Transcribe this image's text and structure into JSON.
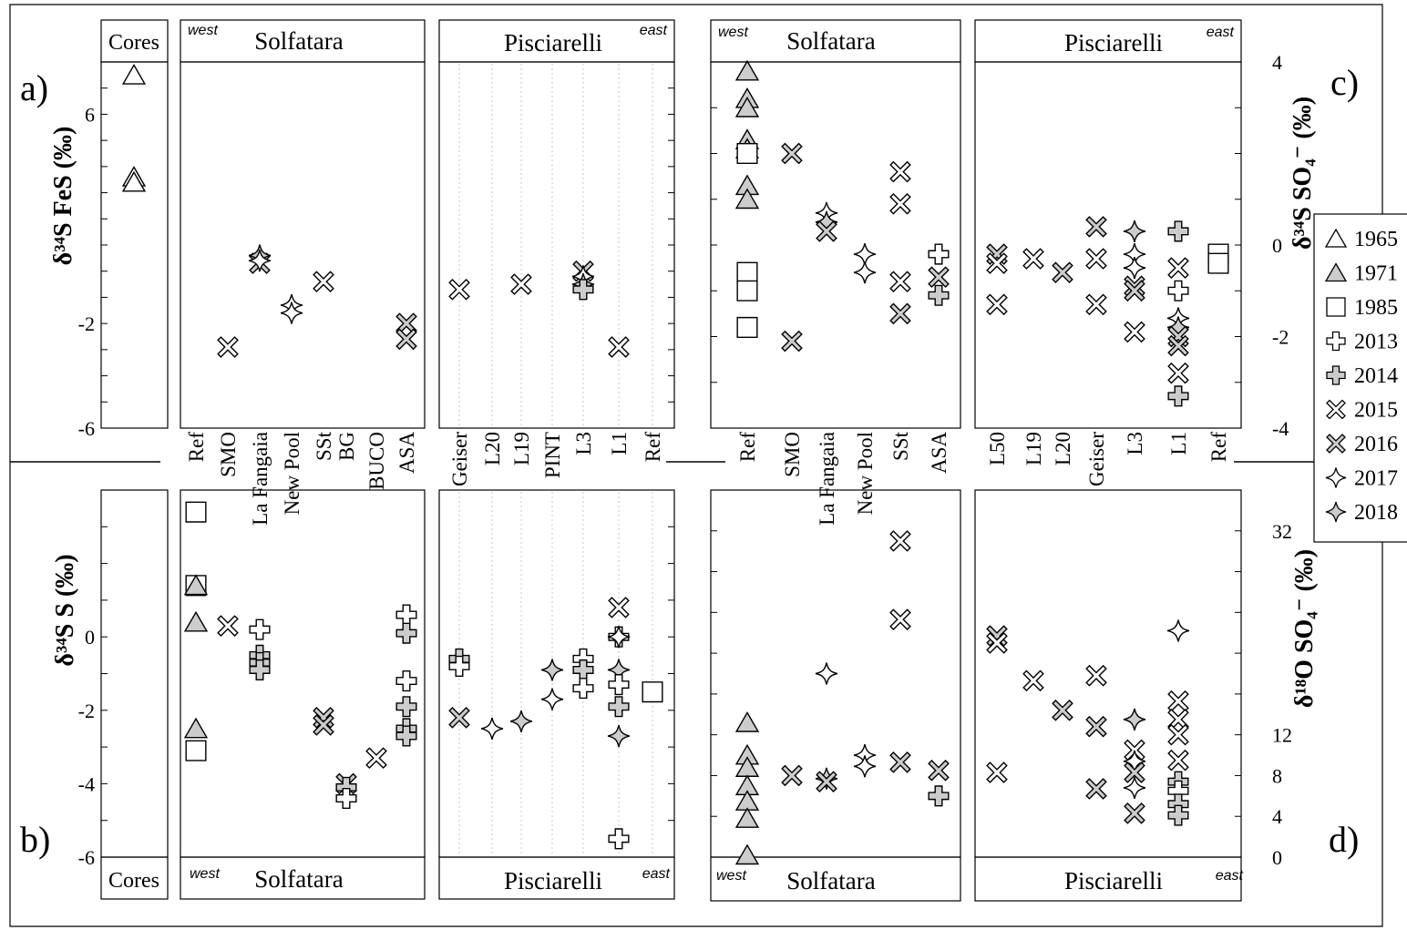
{
  "letters": {
    "a": "a)",
    "b": "b)",
    "c": "c)",
    "d": "d)"
  },
  "sections": {
    "cores": "Cores",
    "solfatara": "Solfatara",
    "pisciarelli": "Pisciarelli",
    "west": "west",
    "east": "east"
  },
  "ylabels": {
    "a": "δ³⁴S FeS (‰)",
    "b": "δ³⁴S S (‰)",
    "c": "δ³⁴S SO₄⁻ (‰)",
    "d": "δ¹⁸O SO₄⁻ (‰)"
  },
  "sites": {
    "left_solfatara": [
      "Ref",
      "SMO",
      "La Fangaia",
      "New Pool",
      "SSt",
      "BG",
      "BUCO",
      "ASA"
    ],
    "left_pisciarelli": [
      "Geiser",
      "L20",
      "L19",
      "PINT",
      "L3",
      "L1",
      "Ref"
    ],
    "right_solfatara": [
      "Ref",
      "SMO",
      "La Fangaia",
      "New Pool",
      "SSt",
      "ASA"
    ],
    "right_pisciarelli": [
      "L50",
      "L19",
      "L20",
      "Geiser",
      "L3",
      "L1",
      "Ref"
    ]
  },
  "legend": [
    {
      "label": "1965",
      "symbol": "triangle",
      "fill": "#ffffff"
    },
    {
      "label": "1971",
      "symbol": "triangle",
      "fill": "#cccccc"
    },
    {
      "label": "1985",
      "symbol": "square",
      "fill": "#ffffff"
    },
    {
      "label": "2013",
      "symbol": "plus",
      "fill": "#ffffff"
    },
    {
      "label": "2014",
      "symbol": "plus",
      "fill": "#cccccc"
    },
    {
      "label": "2015",
      "symbol": "cross",
      "fill": "#ffffff"
    },
    {
      "label": "2016",
      "symbol": "cross",
      "fill": "#cccccc"
    },
    {
      "label": "2017",
      "symbol": "star",
      "fill": "#ffffff"
    },
    {
      "label": "2018",
      "symbol": "star",
      "fill": "#cccccc"
    }
  ],
  "chart_data": [
    {
      "id": "a",
      "type": "scatter",
      "ylim": [
        -6,
        8
      ],
      "yticks": [
        {
          "v": -6,
          "label": "-6"
        },
        {
          "v": -2,
          "label": "-2"
        },
        {
          "v": 6,
          "label": "6"
        }
      ],
      "points": [
        {
          "site": "Cores",
          "y": 7.5,
          "year": "1965"
        },
        {
          "site": "Cores",
          "y": 3.6,
          "year": "1965"
        },
        {
          "site": "Cores",
          "y": 3.4,
          "year": "1965"
        },
        {
          "site": "SMO",
          "y": -2.9,
          "year": "2015"
        },
        {
          "site": "La Fangaia",
          "y": 0.3,
          "year": "2016"
        },
        {
          "site": "La Fangaia",
          "y": 0.6,
          "year": "2018"
        },
        {
          "site": "La Fangaia",
          "y": 0.4,
          "year": "2017"
        },
        {
          "site": "New Pool",
          "y": -1.3,
          "year": "2017"
        },
        {
          "site": "New Pool",
          "y": -1.6,
          "year": "2017"
        },
        {
          "site": "SSt",
          "y": -0.4,
          "year": "2015"
        },
        {
          "site": "ASA",
          "y": -2.0,
          "year": "2016"
        },
        {
          "site": "ASA",
          "y": -2.6,
          "year": "2016"
        },
        {
          "site": "Geiser",
          "y": -0.7,
          "year": "2015"
        },
        {
          "site": "L19",
          "y": -0.5,
          "year": "2015"
        },
        {
          "site": "L3",
          "y": 0.0,
          "year": "2016"
        },
        {
          "site": "L3",
          "y": -0.2,
          "year": "2017"
        },
        {
          "site": "L3",
          "y": -0.5,
          "year": "2018"
        },
        {
          "site": "L3",
          "y": -0.7,
          "year": "2014"
        },
        {
          "site": "L1",
          "y": -2.9,
          "year": "2015"
        }
      ]
    },
    {
      "id": "b",
      "type": "scatter",
      "ylim": [
        -6,
        4
      ],
      "yticks": [
        {
          "v": -6,
          "label": "-6"
        },
        {
          "v": -4,
          "label": "-4"
        },
        {
          "v": -2,
          "label": "-2"
        },
        {
          "v": 0,
          "label": "0"
        }
      ],
      "points": [
        {
          "site": "Ref",
          "y": 3.4,
          "year": "1985"
        },
        {
          "site": "Ref",
          "y": 1.4,
          "year": "1985"
        },
        {
          "site": "Ref",
          "y": 1.4,
          "year": "1971"
        },
        {
          "site": "Ref",
          "y": 0.4,
          "year": "1971"
        },
        {
          "site": "Ref",
          "y": -2.5,
          "year": "1971"
        },
        {
          "site": "Ref",
          "y": -3.1,
          "year": "1985"
        },
        {
          "site": "SMO",
          "y": 0.3,
          "year": "2015"
        },
        {
          "site": "La Fangaia",
          "y": 0.2,
          "year": "2013"
        },
        {
          "site": "La Fangaia",
          "y": -0.5,
          "year": "2014"
        },
        {
          "site": "La Fangaia",
          "y": -0.7,
          "year": "2014"
        },
        {
          "site": "La Fangaia",
          "y": -0.9,
          "year": "2014"
        },
        {
          "site": "SSt",
          "y": -2.2,
          "year": "2016"
        },
        {
          "site": "SSt",
          "y": -2.4,
          "year": "2016"
        },
        {
          "site": "BG",
          "y": -4.0,
          "year": "2016"
        },
        {
          "site": "BG",
          "y": -4.1,
          "year": "2014"
        },
        {
          "site": "BG",
          "y": -4.4,
          "year": "2013"
        },
        {
          "site": "BUCO",
          "y": -3.3,
          "year": "2015"
        },
        {
          "site": "ASA",
          "y": 0.6,
          "year": "2013"
        },
        {
          "site": "ASA",
          "y": 0.1,
          "year": "2014"
        },
        {
          "site": "ASA",
          "y": -1.2,
          "year": "2013"
        },
        {
          "site": "ASA",
          "y": -1.9,
          "year": "2014"
        },
        {
          "site": "ASA",
          "y": -2.5,
          "year": "2014"
        },
        {
          "site": "ASA",
          "y": -2.7,
          "year": "2014"
        },
        {
          "site": "Geiser",
          "y": -0.6,
          "year": "2014"
        },
        {
          "site": "Geiser",
          "y": -0.8,
          "year": "2013"
        },
        {
          "site": "Geiser",
          "y": -2.2,
          "year": "2016"
        },
        {
          "site": "L20",
          "y": -2.5,
          "year": "2017"
        },
        {
          "site": "L19",
          "y": -2.3,
          "year": "2018"
        },
        {
          "site": "PINT",
          "y": -0.9,
          "year": "2018"
        },
        {
          "site": "PINT",
          "y": -1.7,
          "year": "2017"
        },
        {
          "site": "L3",
          "y": -0.6,
          "year": "2013"
        },
        {
          "site": "L3",
          "y": -0.9,
          "year": "2014"
        },
        {
          "site": "L3",
          "y": -1.4,
          "year": "2013"
        },
        {
          "site": "L1",
          "y": 0.8,
          "year": "2015"
        },
        {
          "site": "L1",
          "y": 0.0,
          "year": "2013"
        },
        {
          "site": "L1",
          "y": 0.0,
          "year": "2017"
        },
        {
          "site": "L1",
          "y": -0.9,
          "year": "2018"
        },
        {
          "site": "L1",
          "y": -1.3,
          "year": "2013"
        },
        {
          "site": "L1",
          "y": -1.9,
          "year": "2014"
        },
        {
          "site": "L1",
          "y": -2.7,
          "year": "2018"
        },
        {
          "site": "L1",
          "y": -5.5,
          "year": "2013"
        },
        {
          "site": "Ref",
          "y": -1.5,
          "year": "1985",
          "section": "pisciarelli"
        }
      ]
    },
    {
      "id": "c",
      "type": "scatter",
      "ylim": [
        -4,
        4
      ],
      "yticks": [
        {
          "v": -4,
          "label": "-4"
        },
        {
          "v": -2,
          "label": "-2"
        },
        {
          "v": 0,
          "label": "0"
        },
        {
          "v": 4,
          "label": "4"
        }
      ],
      "points": [
        {
          "site": "Ref",
          "y": 3.8,
          "year": "1971"
        },
        {
          "site": "Ref",
          "y": 3.2,
          "year": "1971"
        },
        {
          "site": "Ref",
          "y": 3.0,
          "year": "1971"
        },
        {
          "site": "Ref",
          "y": 2.3,
          "year": "1971"
        },
        {
          "site": "Ref",
          "y": 2.1,
          "year": "1971"
        },
        {
          "site": "Ref",
          "y": 2.0,
          "year": "1985"
        },
        {
          "site": "Ref",
          "y": 1.3,
          "year": "1971"
        },
        {
          "site": "Ref",
          "y": 1.0,
          "year": "1971"
        },
        {
          "site": "Ref",
          "y": -0.6,
          "year": "1985"
        },
        {
          "site": "Ref",
          "y": -1.0,
          "year": "1985"
        },
        {
          "site": "Ref",
          "y": -1.8,
          "year": "1985"
        },
        {
          "site": "SMO",
          "y": 2.0,
          "year": "2016"
        },
        {
          "site": "SMO",
          "y": -2.1,
          "year": "2016"
        },
        {
          "site": "La Fangaia",
          "y": 0.7,
          "year": "2017"
        },
        {
          "site": "La Fangaia",
          "y": 0.5,
          "year": "2018"
        },
        {
          "site": "La Fangaia",
          "y": 0.3,
          "year": "2016"
        },
        {
          "site": "New Pool",
          "y": -0.2,
          "year": "2017"
        },
        {
          "site": "New Pool",
          "y": -0.6,
          "year": "2017"
        },
        {
          "site": "SSt",
          "y": 1.6,
          "year": "2015"
        },
        {
          "site": "SSt",
          "y": 0.9,
          "year": "2015"
        },
        {
          "site": "SSt",
          "y": -0.8,
          "year": "2015"
        },
        {
          "site": "SSt",
          "y": -1.5,
          "year": "2016"
        },
        {
          "site": "ASA",
          "y": -0.2,
          "year": "2013"
        },
        {
          "site": "ASA",
          "y": -0.7,
          "year": "2016"
        },
        {
          "site": "ASA",
          "y": -1.1,
          "year": "2014"
        },
        {
          "site": "L50",
          "y": -0.2,
          "year": "2016"
        },
        {
          "site": "L50",
          "y": -0.4,
          "year": "2015"
        },
        {
          "site": "L50",
          "y": -1.3,
          "year": "2015"
        },
        {
          "site": "L19",
          "y": -0.3,
          "year": "2015"
        },
        {
          "site": "L20",
          "y": -0.6,
          "year": "2016"
        },
        {
          "site": "Geiser",
          "y": 0.4,
          "year": "2016"
        },
        {
          "site": "Geiser",
          "y": -0.3,
          "year": "2015"
        },
        {
          "site": "Geiser",
          "y": -1.3,
          "year": "2015"
        },
        {
          "site": "L3",
          "y": 0.3,
          "year": "2018"
        },
        {
          "site": "L3",
          "y": -0.2,
          "year": "2017"
        },
        {
          "site": "L3",
          "y": -0.5,
          "year": "2017"
        },
        {
          "site": "L3",
          "y": -0.9,
          "year": "2016"
        },
        {
          "site": "L3",
          "y": -1.0,
          "year": "2016"
        },
        {
          "site": "L3",
          "y": -1.9,
          "year": "2015"
        },
        {
          "site": "L1",
          "y": 0.3,
          "year": "2014"
        },
        {
          "site": "L1",
          "y": -0.5,
          "year": "2015"
        },
        {
          "site": "L1",
          "y": -1.0,
          "year": "2013"
        },
        {
          "site": "L1",
          "y": -1.6,
          "year": "2017"
        },
        {
          "site": "L1",
          "y": -1.8,
          "year": "2018"
        },
        {
          "site": "L1",
          "y": -2.0,
          "year": "2016"
        },
        {
          "site": "L1",
          "y": -2.2,
          "year": "2016"
        },
        {
          "site": "L1",
          "y": -2.8,
          "year": "2015"
        },
        {
          "site": "L1",
          "y": -3.3,
          "year": "2014"
        },
        {
          "site": "Ref",
          "y": -0.2,
          "year": "1985",
          "section": "pisciarelli"
        },
        {
          "site": "Ref",
          "y": -0.4,
          "year": "1985",
          "section": "pisciarelli"
        }
      ]
    },
    {
      "id": "d",
      "type": "scatter",
      "ylim": [
        0,
        36
      ],
      "yticks": [
        {
          "v": 0,
          "label": "0"
        },
        {
          "v": 4,
          "label": "4"
        },
        {
          "v": 8,
          "label": "8"
        },
        {
          "v": 12,
          "label": "12"
        },
        {
          "v": 32,
          "label": "32"
        }
      ],
      "points": [
        {
          "site": "Ref",
          "y": 13.2,
          "year": "1971"
        },
        {
          "site": "Ref",
          "y": 10.0,
          "year": "1971"
        },
        {
          "site": "Ref",
          "y": 8.8,
          "year": "1971"
        },
        {
          "site": "Ref",
          "y": 7.0,
          "year": "1971"
        },
        {
          "site": "Ref",
          "y": 5.5,
          "year": "1971"
        },
        {
          "site": "Ref",
          "y": 3.8,
          "year": "1971"
        },
        {
          "site": "Ref",
          "y": 0.2,
          "year": "1971"
        },
        {
          "site": "SMO",
          "y": 8.0,
          "year": "2016"
        },
        {
          "site": "La Fangaia",
          "y": 18.0,
          "year": "2017"
        },
        {
          "site": "La Fangaia",
          "y": 7.7,
          "year": "2018"
        },
        {
          "site": "La Fangaia",
          "y": 7.4,
          "year": "2016"
        },
        {
          "site": "New Pool",
          "y": 10.0,
          "year": "2017"
        },
        {
          "site": "New Pool",
          "y": 8.9,
          "year": "2017"
        },
        {
          "site": "SSt",
          "y": 31.0,
          "year": "2015"
        },
        {
          "site": "SSt",
          "y": 23.3,
          "year": "2015"
        },
        {
          "site": "SSt",
          "y": 9.3,
          "year": "2016"
        },
        {
          "site": "ASA",
          "y": 8.5,
          "year": "2016"
        },
        {
          "site": "ASA",
          "y": 6.0,
          "year": "2014"
        },
        {
          "site": "L50",
          "y": 21.7,
          "year": "2016"
        },
        {
          "site": "L50",
          "y": 21.0,
          "year": "2015"
        },
        {
          "site": "L50",
          "y": 8.3,
          "year": "2015"
        },
        {
          "site": "L19",
          "y": 17.3,
          "year": "2015"
        },
        {
          "site": "L20",
          "y": 14.4,
          "year": "2016"
        },
        {
          "site": "Geiser",
          "y": 17.8,
          "year": "2015"
        },
        {
          "site": "Geiser",
          "y": 12.8,
          "year": "2016"
        },
        {
          "site": "Geiser",
          "y": 6.7,
          "year": "2016"
        },
        {
          "site": "L3",
          "y": 13.5,
          "year": "2018"
        },
        {
          "site": "L3",
          "y": 10.5,
          "year": "2015"
        },
        {
          "site": "L3",
          "y": 9.4,
          "year": "2017"
        },
        {
          "site": "L3",
          "y": 8.3,
          "year": "2016"
        },
        {
          "site": "L3",
          "y": 6.8,
          "year": "2017"
        },
        {
          "site": "L3",
          "y": 4.3,
          "year": "2016"
        },
        {
          "site": "L1",
          "y": 22.2,
          "year": "2017"
        },
        {
          "site": "L1",
          "y": 15.3,
          "year": "2015"
        },
        {
          "site": "L1",
          "y": 13.5,
          "year": "2015"
        },
        {
          "site": "L1",
          "y": 12.0,
          "year": "2015"
        },
        {
          "site": "L1",
          "y": 9.5,
          "year": "2015"
        },
        {
          "site": "L1",
          "y": 7.4,
          "year": "2014"
        },
        {
          "site": "L1",
          "y": 6.5,
          "year": "2013"
        },
        {
          "site": "L1",
          "y": 5.2,
          "year": "2014"
        },
        {
          "site": "L1",
          "y": 4.1,
          "year": "2014"
        }
      ]
    }
  ]
}
